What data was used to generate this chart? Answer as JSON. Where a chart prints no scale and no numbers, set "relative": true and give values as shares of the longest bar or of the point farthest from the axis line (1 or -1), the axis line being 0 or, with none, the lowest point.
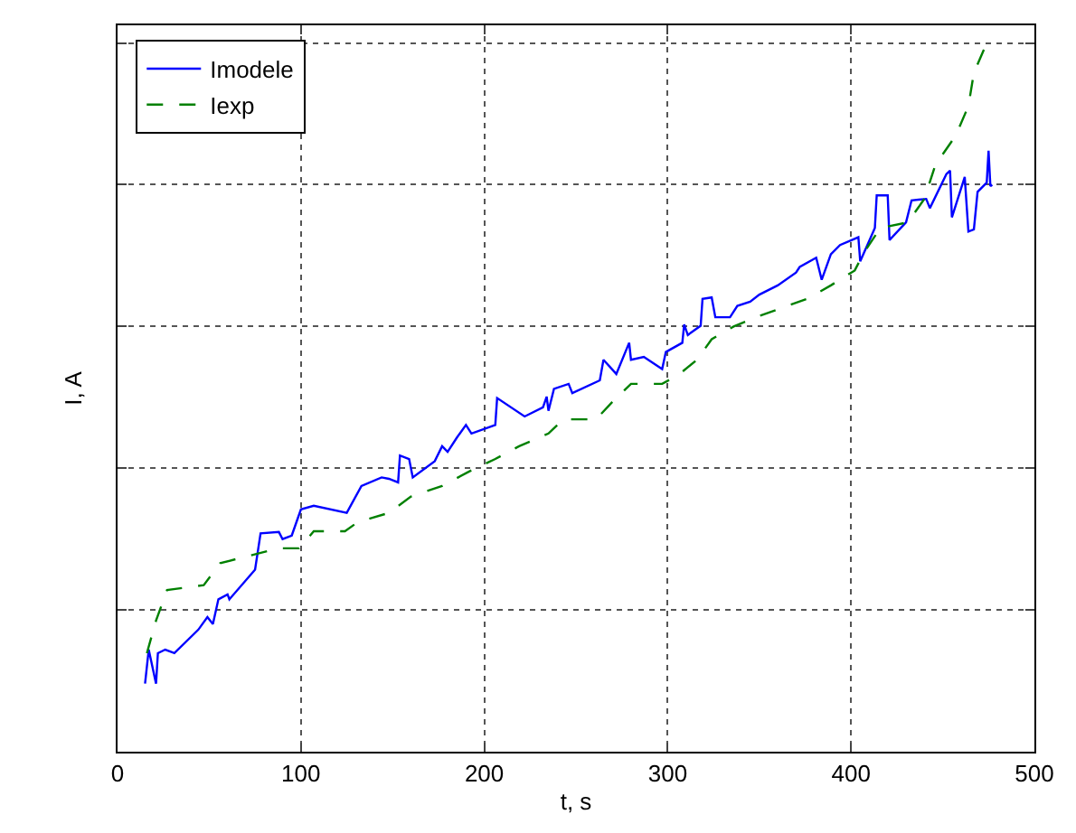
{
  "chart_data": {
    "type": "line",
    "xlabel": "t, s",
    "ylabel": "I, A",
    "relative": true,
    "xlim": [
      0,
      500
    ],
    "xticks": [
      0,
      100,
      200,
      300,
      400,
      500
    ],
    "grid": true,
    "legend": "top left",
    "marker": "none",
    "series": [
      {
        "name": "Imodele",
        "color": "#0000ff",
        "line_style": "solid",
        "x": [
          15,
          17,
          21,
          22,
          26,
          31,
          44,
          49,
          52,
          55,
          60,
          61,
          75,
          78,
          88,
          90,
          95,
          100,
          107,
          125,
          133,
          144,
          148,
          153,
          154,
          159,
          161,
          173,
          177,
          180,
          185,
          190,
          193,
          206,
          207,
          222,
          232,
          234,
          235,
          238,
          246,
          248,
          263,
          265,
          272,
          279,
          280,
          287,
          297,
          299,
          308,
          309,
          311,
          318,
          319,
          324,
          326,
          334,
          338,
          345,
          350,
          360,
          370,
          372,
          381,
          384,
          389,
          394,
          404,
          405,
          413,
          414,
          420,
          421,
          430,
          433,
          441,
          443,
          452,
          454,
          455,
          462,
          464,
          467,
          469,
          474,
          475,
          476,
          477
        ],
        "values": [
          0.096,
          0.144,
          0.096,
          0.139,
          0.144,
          0.139,
          0.172,
          0.19,
          0.18,
          0.215,
          0.222,
          0.215,
          0.257,
          0.308,
          0.31,
          0.3,
          0.305,
          0.342,
          0.347,
          0.337,
          0.375,
          0.387,
          0.385,
          0.38,
          0.418,
          0.413,
          0.387,
          0.41,
          0.431,
          0.423,
          0.443,
          0.461,
          0.449,
          0.461,
          0.499,
          0.473,
          0.486,
          0.501,
          0.481,
          0.512,
          0.519,
          0.506,
          0.524,
          0.553,
          0.533,
          0.577,
          0.553,
          0.557,
          0.54,
          0.564,
          0.577,
          0.603,
          0.588,
          0.601,
          0.639,
          0.641,
          0.613,
          0.613,
          0.629,
          0.635,
          0.645,
          0.658,
          0.676,
          0.684,
          0.697,
          0.666,
          0.702,
          0.715,
          0.726,
          0.692,
          0.739,
          0.785,
          0.785,
          0.722,
          0.747,
          0.778,
          0.78,
          0.767,
          0.815,
          0.82,
          0.754,
          0.811,
          0.734,
          0.737,
          0.79,
          0.803,
          0.848,
          0.798,
          0.8
        ]
      },
      {
        "name": "Iexp",
        "color": "#008000",
        "line_style": "dashed",
        "x": [
          16,
          21,
          27,
          47,
          56,
          71,
          88,
          99,
          107,
          124,
          131,
          148,
          160,
          177,
          193,
          206,
          219,
          235,
          243,
          261,
          270,
          280,
          297,
          306,
          316,
          324,
          336,
          350,
          362,
          376,
          389,
          402,
          407,
          416,
          431,
          440,
          446,
          457,
          464,
          467,
          474
        ],
        "values": [
          0.139,
          0.185,
          0.228,
          0.235,
          0.266,
          0.276,
          0.287,
          0.287,
          0.311,
          0.311,
          0.324,
          0.337,
          0.36,
          0.375,
          0.397,
          0.413,
          0.431,
          0.449,
          0.469,
          0.469,
          0.494,
          0.519,
          0.519,
          0.532,
          0.553,
          0.582,
          0.6,
          0.615,
          0.626,
          0.639,
          0.658,
          0.679,
          0.704,
          0.739,
          0.747,
          0.78,
          0.828,
          0.869,
          0.911,
          0.958,
          1.0
        ]
      }
    ]
  }
}
